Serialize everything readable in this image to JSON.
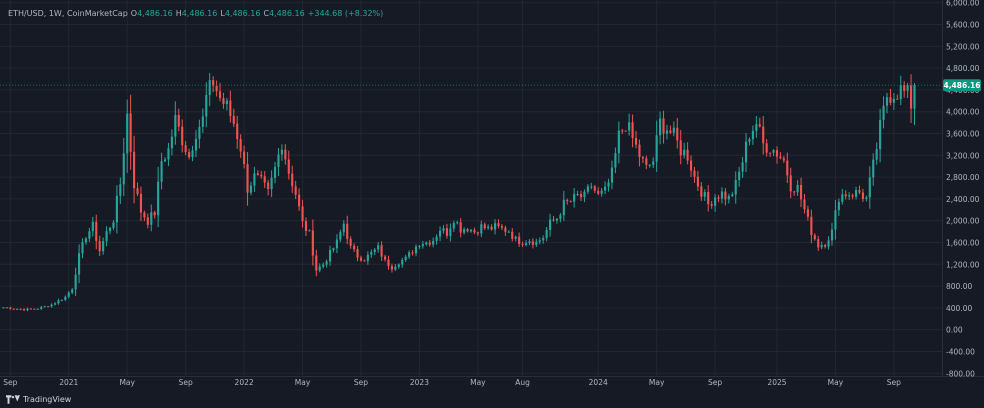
{
  "legend": {
    "symbol": "ETH/USD",
    "interval": "1W",
    "source": "CoinMarketCap",
    "open_label": "O",
    "open": "4,486.16",
    "high_label": "H",
    "high": "4,486.16",
    "low_label": "L",
    "low": "4,486.16",
    "close_label": "C",
    "close": "4,486.16",
    "change": "+344.68 (+8.32%)"
  },
  "brand": {
    "name": "TradingView",
    "icon": "tradingview-logo-icon"
  },
  "price_badge": {
    "value": "4,486.16",
    "price": 4486.16,
    "color": "#089981"
  },
  "colors": {
    "up": "#26a69a",
    "down": "#ef5350",
    "background": "#161a25",
    "grid": "#232632"
  },
  "chart_data": {
    "type": "candlestick",
    "title": "",
    "y_ticks": [
      "6,000.00",
      "5,600.00",
      "5,200.00",
      "4,800.00",
      "4,400.00",
      "4,000.00",
      "3,600.00",
      "3,200.00",
      "2,800.00",
      "2,400.00",
      "2,000.00",
      "1,600.00",
      "1,200.00",
      "800.00",
      "400.00",
      "0.00",
      "-400.00",
      "-800.00"
    ],
    "y_tick_values": [
      6000,
      5600,
      5200,
      4800,
      4400,
      4000,
      3600,
      3200,
      2800,
      2400,
      2000,
      1600,
      1200,
      800,
      400,
      0,
      -400,
      -800
    ],
    "ylim": [
      -850,
      6050
    ],
    "x_ticks": [
      {
        "label": "Sep",
        "week": 2
      },
      {
        "label": "2021",
        "week": 19
      },
      {
        "label": "May",
        "week": 36
      },
      {
        "label": "Sep",
        "week": 53
      },
      {
        "label": "2022",
        "week": 70
      },
      {
        "label": "May",
        "week": 87
      },
      {
        "label": "Sep",
        "week": 104
      },
      {
        "label": "2023",
        "week": 121
      },
      {
        "label": "May",
        "week": 138
      },
      {
        "label": "Aug",
        "week": 151
      },
      {
        "label": "2024",
        "week": 173
      },
      {
        "label": "May",
        "week": 190
      },
      {
        "label": "Sep",
        "week": 207
      },
      {
        "label": "2025",
        "week": 225
      },
      {
        "label": "May",
        "week": 242
      },
      {
        "label": "Sep",
        "week": 259
      }
    ],
    "xlim": [
      -1,
      273
    ],
    "anchors": [
      [
        0,
        410
      ],
      [
        6,
        370
      ],
      [
        10,
        390
      ],
      [
        14,
        460
      ],
      [
        18,
        600
      ],
      [
        20,
        760
      ],
      [
        22,
        1350
      ],
      [
        24,
        1730
      ],
      [
        26,
        1900
      ],
      [
        28,
        1450
      ],
      [
        30,
        1780
      ],
      [
        32,
        2030
      ],
      [
        34,
        2680
      ],
      [
        36,
        3950
      ],
      [
        38,
        2680
      ],
      [
        40,
        2180
      ],
      [
        42,
        2000
      ],
      [
        44,
        2150
      ],
      [
        46,
        3100
      ],
      [
        48,
        3300
      ],
      [
        50,
        3850
      ],
      [
        52,
        3500
      ],
      [
        54,
        3180
      ],
      [
        56,
        3650
      ],
      [
        58,
        3850
      ],
      [
        59,
        4250
      ],
      [
        61,
        4550
      ],
      [
        63,
        4250
      ],
      [
        65,
        4080
      ],
      [
        67,
        3800
      ],
      [
        69,
        3350
      ],
      [
        71,
        2600
      ],
      [
        73,
        2800
      ],
      [
        75,
        2700
      ],
      [
        77,
        2500
      ],
      [
        79,
        2950
      ],
      [
        81,
        3450
      ],
      [
        83,
        2900
      ],
      [
        85,
        2500
      ],
      [
        87,
        1950
      ],
      [
        89,
        1750
      ],
      [
        91,
        1100
      ],
      [
        93,
        1200
      ],
      [
        95,
        1400
      ],
      [
        97,
        1600
      ],
      [
        99,
        1950
      ],
      [
        101,
        1500
      ],
      [
        103,
        1350
      ],
      [
        105,
        1300
      ],
      [
        107,
        1400
      ],
      [
        109,
        1500
      ],
      [
        111,
        1250
      ],
      [
        113,
        1150
      ],
      [
        115,
        1250
      ],
      [
        117,
        1300
      ],
      [
        119,
        1450
      ],
      [
        121,
        1600
      ],
      [
        123,
        1600
      ],
      [
        125,
        1650
      ],
      [
        127,
        1850
      ],
      [
        129,
        1780
      ],
      [
        131,
        2050
      ],
      [
        133,
        1850
      ],
      [
        135,
        1870
      ],
      [
        137,
        1800
      ],
      [
        139,
        1890
      ],
      [
        141,
        1850
      ],
      [
        143,
        1880
      ],
      [
        145,
        1850
      ],
      [
        147,
        1820
      ],
      [
        149,
        1650
      ],
      [
        151,
        1620
      ],
      [
        153,
        1650
      ],
      [
        155,
        1600
      ],
      [
        157,
        1700
      ],
      [
        159,
        1950
      ],
      [
        161,
        2050
      ],
      [
        163,
        2300
      ],
      [
        165,
        2350
      ],
      [
        167,
        2450
      ],
      [
        169,
        2430
      ],
      [
        171,
        2650
      ],
      [
        173,
        2450
      ],
      [
        175,
        2530
      ],
      [
        177,
        2850
      ],
      [
        179,
        3550
      ],
      [
        181,
        3800
      ],
      [
        183,
        3500
      ],
      [
        185,
        3200
      ],
      [
        187,
        2950
      ],
      [
        189,
        3100
      ],
      [
        191,
        3800
      ],
      [
        193,
        3700
      ],
      [
        195,
        3550
      ],
      [
        197,
        3300
      ],
      [
        199,
        3200
      ],
      [
        201,
        2800
      ],
      [
        203,
        2550
      ],
      [
        205,
        2300
      ],
      [
        207,
        2450
      ],
      [
        209,
        2500
      ],
      [
        211,
        2400
      ],
      [
        213,
        2650
      ],
      [
        215,
        3100
      ],
      [
        217,
        3600
      ],
      [
        219,
        3800
      ],
      [
        221,
        3400
      ],
      [
        223,
        3350
      ],
      [
        225,
        3250
      ],
      [
        227,
        3100
      ],
      [
        229,
        2650
      ],
      [
        231,
        2600
      ],
      [
        233,
        2200
      ],
      [
        235,
        1800
      ],
      [
        237,
        1550
      ],
      [
        239,
        1590
      ],
      [
        241,
        1800
      ],
      [
        243,
        2450
      ],
      [
        245,
        2500
      ],
      [
        247,
        2500
      ],
      [
        249,
        2520
      ],
      [
        251,
        2400
      ],
      [
        253,
        3000
      ],
      [
        255,
        3700
      ],
      [
        257,
        4300
      ],
      [
        259,
        4350
      ],
      [
        261,
        4400
      ],
      [
        263,
        4300
      ],
      [
        264,
        4141
      ],
      [
        265,
        4486
      ]
    ]
  }
}
